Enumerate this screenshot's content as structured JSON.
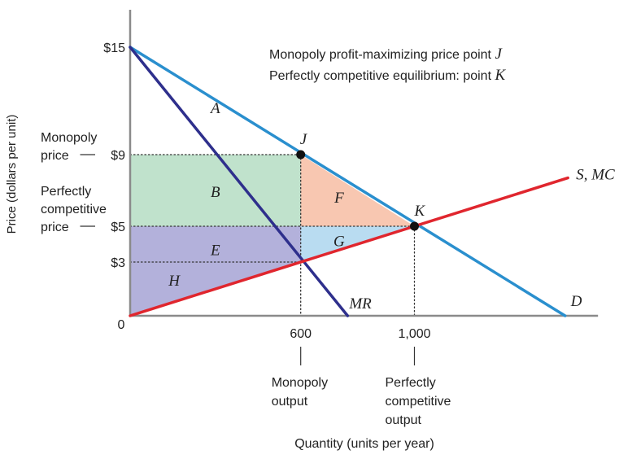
{
  "chart_data": {
    "type": "line",
    "title": "",
    "xlabel": "Quantity (units per year)",
    "ylabel": "Price (dollars per unit)",
    "origin_label": "0",
    "xlim": [
      0,
      1600
    ],
    "ylim": [
      0,
      15
    ],
    "grid": false,
    "notes": [
      "Monopoly profit-maximizing price point J",
      "Perfectly competitive equilibrium: point K"
    ],
    "x_ticks": [
      {
        "value": 600,
        "label": "600",
        "caption": [
          "Monopoly",
          "output"
        ]
      },
      {
        "value": 1000,
        "label": "1,000",
        "caption": [
          "Perfectly",
          "competitive",
          "output"
        ]
      }
    ],
    "y_ticks": [
      {
        "value": 15,
        "label": "$15",
        "caption": []
      },
      {
        "value": 9,
        "label": "$9",
        "caption": [
          "Monopoly",
          "price"
        ]
      },
      {
        "value": 5,
        "label": "$5",
        "caption": [
          "Perfectly",
          "competitive",
          "price"
        ]
      },
      {
        "value": 3,
        "label": "$3",
        "caption": []
      }
    ],
    "series": [
      {
        "name": "D",
        "color": "#2a8fce",
        "x": [
          0,
          1530
        ],
        "y": [
          15,
          0
        ]
      },
      {
        "name": "MR",
        "color": "#2e2f8c",
        "x": [
          0,
          765
        ],
        "y": [
          15,
          0
        ]
      },
      {
        "name": "S, MC",
        "color": "#e0262e",
        "x": [
          0,
          1540
        ],
        "y": [
          0,
          7.7
        ]
      }
    ],
    "points": [
      {
        "label": "J",
        "x": 600,
        "y": 9
      },
      {
        "label": "K",
        "x": 1000,
        "y": 5
      }
    ],
    "areas": [
      {
        "label": "A",
        "color": "none",
        "polygon": [
          [
            0,
            15
          ],
          [
            600,
            9
          ],
          [
            300,
            9
          ]
        ],
        "label_at": [
          300,
          11.6
        ]
      },
      {
        "label": "B",
        "color": "#c0e2cc",
        "polygon": [
          [
            0,
            9
          ],
          [
            600,
            9
          ],
          [
            600,
            5
          ],
          [
            0,
            5
          ]
        ],
        "label_at": [
          300,
          6.9
        ]
      },
      {
        "label": "F",
        "color": "#f8c7b1",
        "polygon": [
          [
            600,
            9
          ],
          [
            1000,
            5
          ],
          [
            600,
            5
          ]
        ],
        "label_at": [
          735,
          6.6
        ]
      },
      {
        "label": "E",
        "color": "#b3b1db",
        "polygon": [
          [
            0,
            5
          ],
          [
            600,
            5
          ],
          [
            600,
            3
          ],
          [
            0,
            0
          ]
        ],
        "label_at": [
          300,
          3.65
        ]
      },
      {
        "label": "G",
        "color": "#b9dcf1",
        "polygon": [
          [
            600,
            5
          ],
          [
            1000,
            5
          ],
          [
            600,
            3
          ]
        ],
        "label_at": [
          735,
          4.15
        ]
      },
      {
        "label": "H",
        "color": "#b3b1db",
        "polygon": [
          [
            0,
            0
          ],
          [
            600,
            3
          ],
          [
            0,
            3
          ]
        ],
        "label_at": [
          155,
          1.95
        ]
      }
    ],
    "dotted_guides": [
      {
        "from": [
          0,
          9
        ],
        "to": [
          600,
          9
        ]
      },
      {
        "from": [
          600,
          9
        ],
        "to": [
          600,
          0
        ]
      },
      {
        "from": [
          0,
          5
        ],
        "to": [
          1000,
          5
        ]
      },
      {
        "from": [
          1000,
          5
        ],
        "to": [
          1000,
          0
        ]
      },
      {
        "from": [
          0,
          3
        ],
        "to": [
          600,
          3
        ]
      }
    ]
  }
}
